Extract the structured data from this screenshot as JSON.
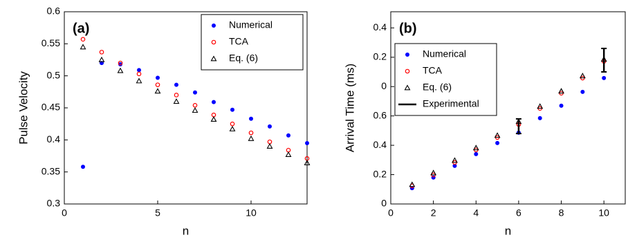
{
  "chart_data": [
    {
      "type": "scatter",
      "panel_label": "(a)",
      "x_label": "n",
      "y_label": "Pulse Velocity",
      "xlim": [
        0,
        13
      ],
      "xticks": [
        0,
        5,
        10
      ],
      "ylim": [
        0.3,
        0.6
      ],
      "yticks": [
        0.3,
        0.35,
        0.4,
        0.45,
        0.5,
        0.55,
        0.6
      ],
      "legend": "upper right",
      "x": [
        1,
        2,
        3,
        4,
        5,
        6,
        7,
        8,
        9,
        10,
        11,
        12,
        13
      ],
      "series": [
        {
          "name": "Numerical",
          "color": "#0000ff",
          "marker": "filled-circle",
          "values": [
            0.358,
            0.52,
            0.518,
            0.509,
            0.497,
            0.486,
            0.474,
            0.459,
            0.447,
            0.433,
            0.421,
            0.407,
            0.395
          ]
        },
        {
          "name": "TCA",
          "color": "#ff0000",
          "marker": "circle",
          "values": [
            0.557,
            0.537,
            0.52,
            0.503,
            0.486,
            0.47,
            0.454,
            0.439,
            0.425,
            0.411,
            0.397,
            0.384,
            0.371
          ]
        },
        {
          "name": "Eq. (6)",
          "color": "#000000",
          "marker": "triangle",
          "values": [
            0.545,
            0.525,
            0.508,
            0.492,
            0.476,
            0.46,
            0.446,
            0.432,
            0.417,
            0.402,
            0.39,
            0.377,
            0.364
          ]
        }
      ]
    },
    {
      "type": "scatter",
      "panel_label": "(b)",
      "x_label": "n",
      "y_label": "Arrival Time (ms)",
      "xlim": [
        0,
        11
      ],
      "xticks": [
        0,
        2,
        4,
        6,
        8,
        10
      ],
      "ylim": [
        0,
        1.31
      ],
      "yticks": [
        0,
        0.2,
        0.4,
        0.6,
        {
          "value": 0.8,
          "label": "0"
        },
        {
          "value": 1.0,
          "label": "0.2"
        },
        {
          "value": 1.2,
          "label": "0.4"
        }
      ],
      "legend": "upper left",
      "x": [
        1,
        2,
        3,
        4,
        5,
        6,
        7,
        8,
        9,
        10
      ],
      "series": [
        {
          "name": "Numerical",
          "color": "#0000ff",
          "marker": "filled-circle",
          "values": [
            0.108,
            0.18,
            0.26,
            0.34,
            0.415,
            0.486,
            0.585,
            0.67,
            0.764,
            0.858
          ]
        },
        {
          "name": "TCA",
          "color": "#ff0000",
          "marker": "circle",
          "values": [
            0.123,
            0.198,
            0.283,
            0.368,
            0.453,
            0.542,
            0.651,
            0.755,
            0.858,
            0.972
          ]
        },
        {
          "name": "Eq. (6)",
          "color": "#000000",
          "marker": "triangle",
          "values": [
            0.132,
            0.212,
            0.297,
            0.382,
            0.467,
            0.561,
            0.665,
            0.769,
            0.873,
            0.986
          ]
        },
        {
          "name": "Experimental",
          "color": "#000000",
          "marker": "errorbar",
          "x": [
            6,
            10
          ],
          "values": [
            0.53,
            0.98
          ],
          "errors": [
            0.05,
            0.08
          ]
        }
      ]
    }
  ]
}
